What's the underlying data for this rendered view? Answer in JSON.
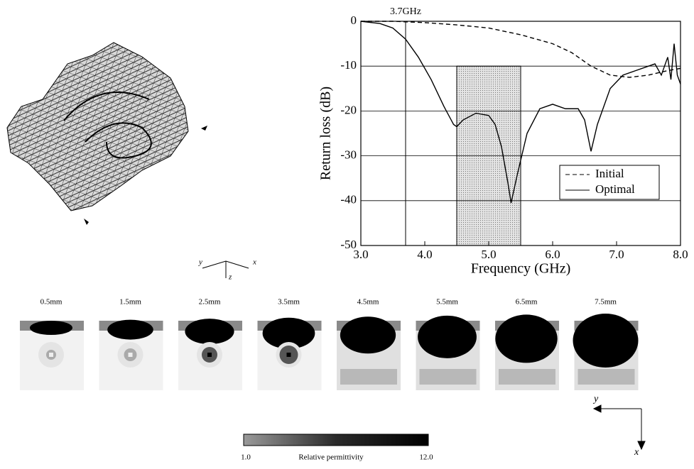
{
  "chart_data": {
    "type": "line",
    "xlabel": "Frequency (GHz)",
    "ylabel": "Return loss (dB)",
    "xlim": [
      3,
      8
    ],
    "ylim": [
      -50,
      0
    ],
    "xticks": [
      {
        "value": 3,
        "label": "3.0"
      },
      {
        "value": 4,
        "label": "4.0"
      },
      {
        "value": 5,
        "label": "5.0"
      },
      {
        "value": 6,
        "label": "6.0"
      },
      {
        "value": 7,
        "label": "7.0"
      },
      {
        "value": 8,
        "label": "8.0"
      }
    ],
    "yticks": [
      -50,
      -40,
      -30,
      -20,
      -10,
      0
    ],
    "grid": true,
    "legend": "lower right",
    "marker": {
      "x": 3.7,
      "label": "3.7GHz"
    },
    "band": {
      "x": [
        4.5,
        5.5
      ],
      "y": [
        -50,
        -10
      ]
    },
    "series": [
      {
        "name": "Initial",
        "color": "#000000",
        "style": "dashed",
        "x": [
          3.0,
          3.5,
          4.0,
          4.5,
          5.0,
          5.5,
          6.0,
          6.3,
          6.6,
          6.9,
          7.2,
          7.5,
          7.8,
          8.0
        ],
        "values": [
          0,
          0,
          -0.3,
          -0.8,
          -1.5,
          -3,
          -5,
          -7,
          -10,
          -12,
          -12.5,
          -12,
          -11,
          -10.5
        ]
      },
      {
        "name": "Optimal",
        "color": "#000000",
        "style": "solid",
        "x": [
          3.0,
          3.3,
          3.5,
          3.7,
          3.9,
          4.1,
          4.3,
          4.45,
          4.5,
          4.6,
          4.8,
          5.0,
          5.1,
          5.2,
          5.3,
          5.35,
          5.45,
          5.6,
          5.8,
          6.0,
          6.2,
          6.4,
          6.5,
          6.6,
          6.7,
          6.9,
          7.1,
          7.3,
          7.5,
          7.6,
          7.7,
          7.8,
          7.85,
          7.9,
          7.95,
          8.0
        ],
        "values": [
          0,
          -0.5,
          -1.5,
          -4,
          -8,
          -13,
          -19,
          -23,
          -23.5,
          -22,
          -20.5,
          -21,
          -23,
          -28,
          -36,
          -40.5,
          -34,
          -25,
          -19.5,
          -18.5,
          -19.5,
          -19.5,
          -22,
          -29,
          -23,
          -15,
          -12,
          -11,
          -10,
          -9.5,
          -12,
          -8,
          -13,
          -5,
          -12,
          -14
        ]
      }
    ]
  },
  "mesh_axes": {
    "y": "y",
    "z": "z",
    "x": "x"
  },
  "slices": [
    "0.5mm",
    "1.5mm",
    "2.5mm",
    "3.5mm",
    "4.5mm",
    "5.5mm",
    "6.5mm",
    "7.5mm"
  ],
  "colorbar": {
    "min": "1.0",
    "title": "Relative permittivity",
    "max": "12.0"
  },
  "slice_axes": {
    "y": "y",
    "x": "x"
  }
}
